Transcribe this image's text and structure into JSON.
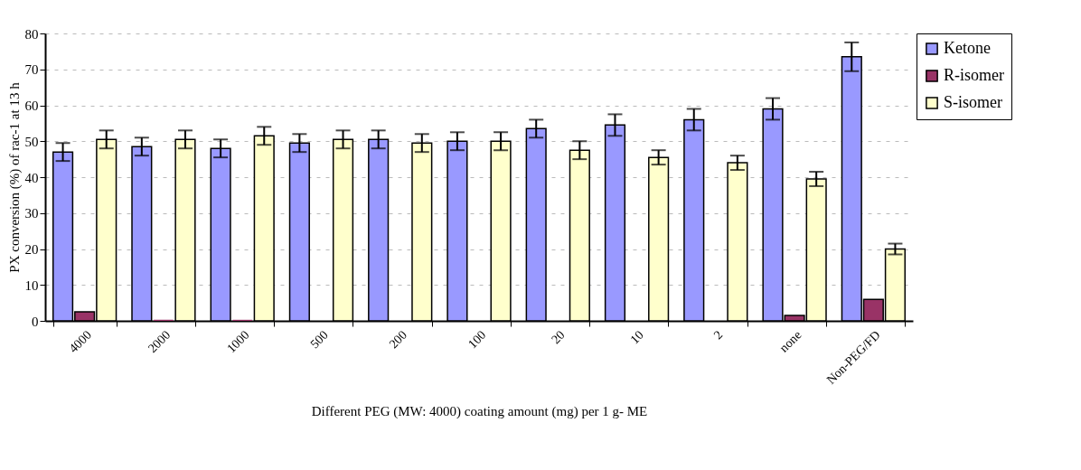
{
  "chart_data": {
    "type": "bar",
    "xlabel": "Different PEG (MW: 4000) coating amount (mg) per 1 g- ME",
    "ylabel": "PX conversion (%) of rac-1 at 13 h",
    "categories": [
      "4000",
      "2000",
      "1000",
      "500",
      "200",
      "100",
      "20",
      "10",
      "2",
      "none",
      "Non-PEG/FD"
    ],
    "series": [
      {
        "name": "Ketone",
        "color": "#9999ff",
        "values": [
          47,
          48.5,
          48,
          49.5,
          50.5,
          50,
          53.5,
          54.5,
          56,
          59,
          73.5
        ],
        "errors": [
          2.5,
          2.5,
          2.5,
          2.5,
          2.5,
          2.5,
          2.5,
          3,
          3,
          3,
          4
        ]
      },
      {
        "name": "R-isomer",
        "color": "#993366",
        "values": [
          2.5,
          0.3,
          0.3,
          null,
          null,
          null,
          null,
          null,
          null,
          1.5,
          6
        ]
      },
      {
        "name": "S-isomer",
        "color": "#ffffcc",
        "values": [
          50.5,
          50.5,
          51.5,
          50.5,
          49.5,
          50,
          47.5,
          45.5,
          44,
          39.5,
          20
        ],
        "errors": [
          2.5,
          2.5,
          2.5,
          2.5,
          2.5,
          2.5,
          2.5,
          2,
          2,
          2,
          1.5
        ]
      }
    ],
    "ylim": [
      0,
      80
    ],
    "yticks": [
      0,
      10,
      20,
      30,
      40,
      50,
      60,
      70,
      80
    ],
    "grid": "y",
    "legend": "top right"
  }
}
